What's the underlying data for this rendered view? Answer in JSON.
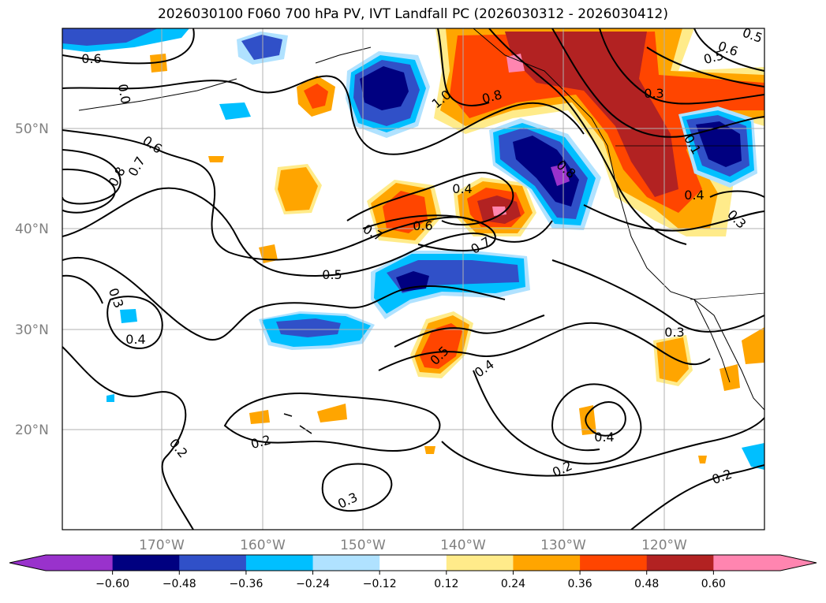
{
  "title": "2026030100 F060 700 hPa PV, IVT Landfall PC (2026030312 - 2026030412)",
  "lat_labels": [
    "50°N",
    "40°N",
    "30°N",
    "20°N"
  ],
  "lon_labels": [
    "170°W",
    "160°W",
    "150°W",
    "140°W",
    "130°W",
    "120°W"
  ],
  "colorbar": {
    "ticks": [
      "−0.60",
      "−0.48",
      "−0.36",
      "−0.24",
      "−0.12",
      "0.12",
      "0.24",
      "0.36",
      "0.48",
      "0.60"
    ],
    "colors": [
      "#9932cc",
      "#000080",
      "#3050c8",
      "#00bfff",
      "#b0e2ff",
      "#ffffff",
      "#ffeb8a",
      "#ffa500",
      "#ff4500",
      "#b22222",
      "#ff85b0"
    ]
  },
  "contour_labels": [
    {
      "text": "0.6"
    },
    {
      "text": "0.6"
    },
    {
      "text": "0.7"
    },
    {
      "text": "0.8"
    },
    {
      "text": "0.3"
    },
    {
      "text": "0.4"
    },
    {
      "text": "0.5"
    },
    {
      "text": "0.7"
    },
    {
      "text": "0.6"
    },
    {
      "text": "0.4"
    },
    {
      "text": "0.7"
    },
    {
      "text": "0.5"
    },
    {
      "text": "0.4"
    },
    {
      "text": "0.2"
    },
    {
      "text": "0.2"
    },
    {
      "text": "0.3"
    },
    {
      "text": "0.2"
    },
    {
      "text": "0.4"
    },
    {
      "text": "0.3"
    },
    {
      "text": "0.2"
    },
    {
      "text": "1.0"
    },
    {
      "text": "0.8"
    },
    {
      "text": "0.8"
    },
    {
      "text": "0.4"
    },
    {
      "text": "0.3"
    },
    {
      "text": "0.5"
    },
    {
      "text": "0.6"
    },
    {
      "text": "0.1"
    },
    {
      "text": "0.3"
    },
    {
      "text": "0.5"
    },
    {
      "text": "0.0"
    }
  ]
}
